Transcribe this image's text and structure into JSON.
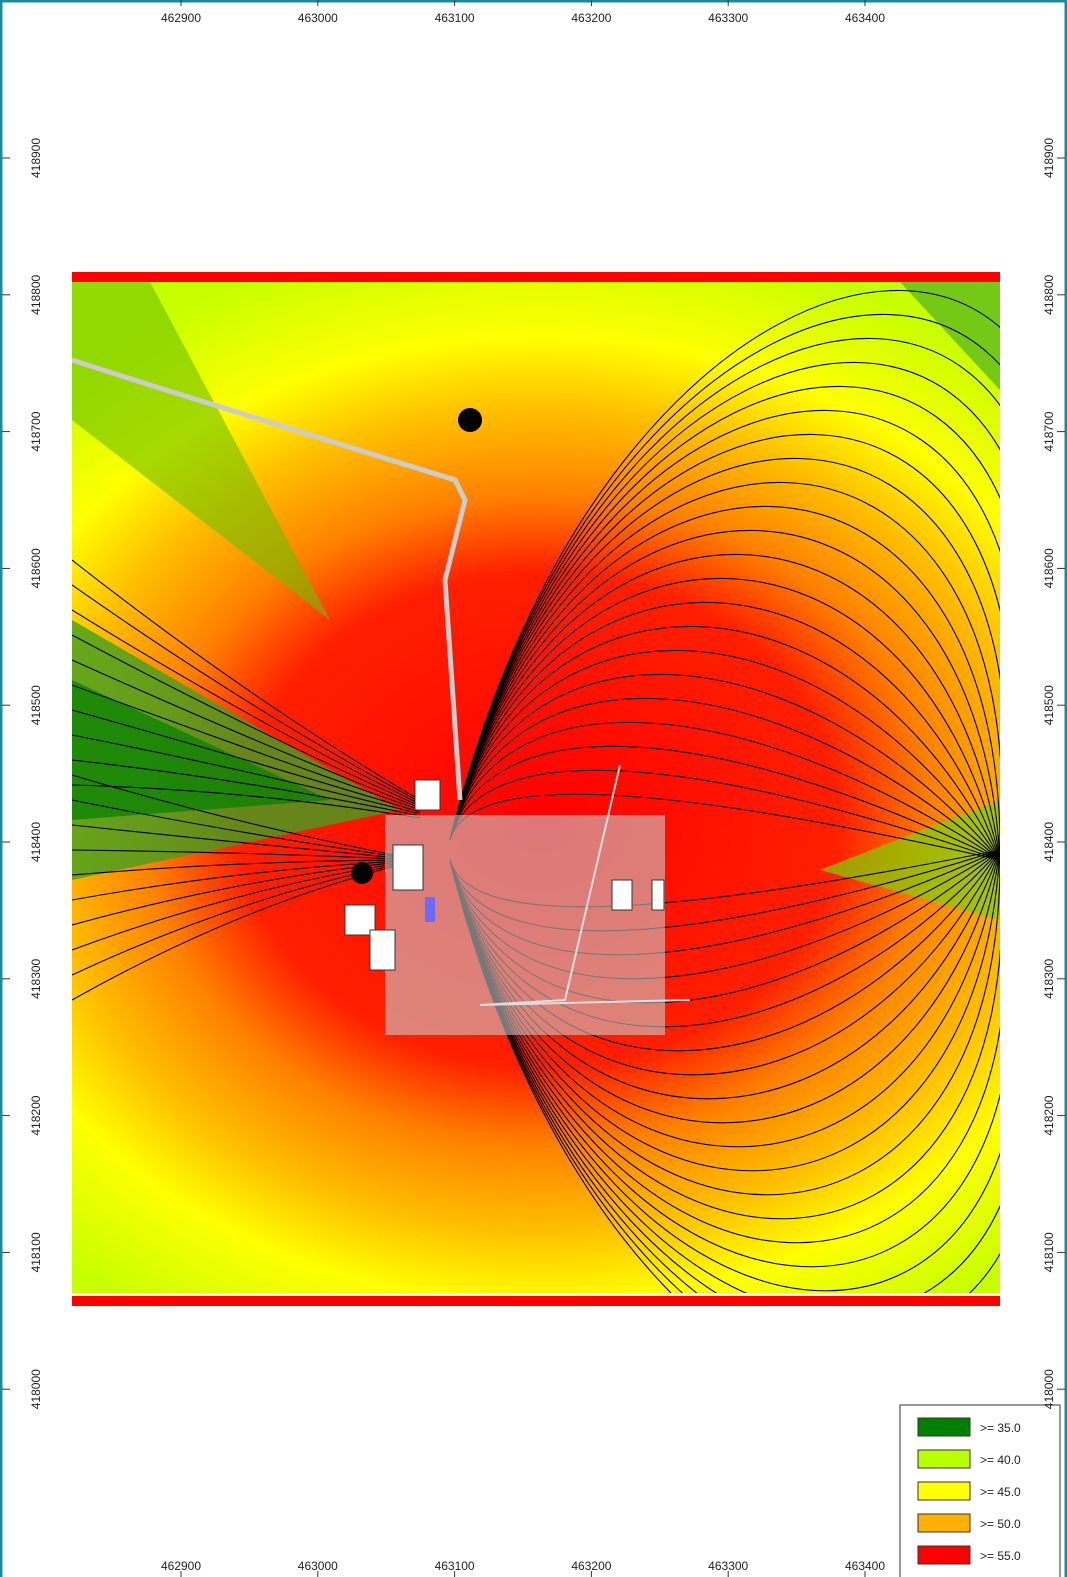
{
  "x_axis": {
    "ticks": [
      462900,
      463000,
      463100,
      463200,
      463300,
      463400
    ]
  },
  "y_axis": {
    "ticks": [
      418900,
      418800,
      418700,
      418600,
      418500,
      418400,
      418300,
      418200,
      418100,
      418000
    ]
  },
  "legend": [
    {
      "label": ">= 35.0",
      "color": "#008000"
    },
    {
      "label": ">= 40.0",
      "color": "#b8ff00"
    },
    {
      "label": ">= 45.0",
      "color": "#ffff00"
    },
    {
      "label": ">= 50.0",
      "color": "#ffb000"
    },
    {
      "label": ">= 55.0",
      "color": "#ff0000"
    }
  ]
}
